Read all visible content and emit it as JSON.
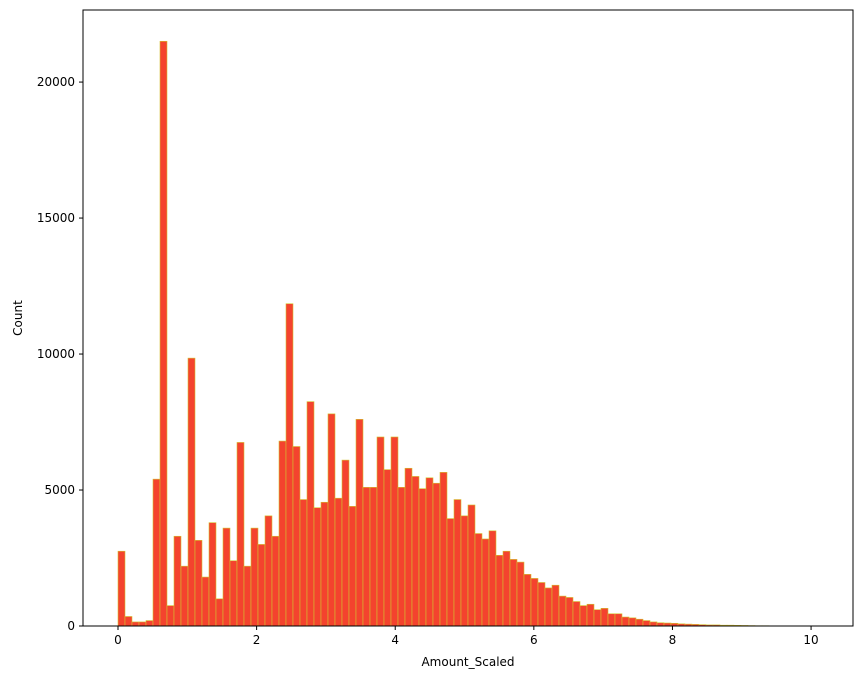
{
  "chart_data": {
    "type": "histogram",
    "xlabel": "Amount_Scaled",
    "ylabel": "Count",
    "color": "#f4432e",
    "edgecolor": "#d4c230",
    "bins": [
      0,
      0.101,
      0.202,
      0.303,
      0.404,
      0.505,
      0.606,
      0.707,
      0.808,
      0.909,
      1.01,
      1.111,
      1.212,
      1.313,
      1.414,
      1.515,
      1.616,
      1.717,
      1.818,
      1.919,
      2.02,
      2.121,
      2.222,
      2.323,
      2.424,
      2.525,
      2.626,
      2.727,
      2.828,
      2.929,
      3.03,
      3.131,
      3.232,
      3.333,
      3.434,
      3.535,
      3.636,
      3.737,
      3.838,
      3.939,
      4.04,
      4.141,
      4.242,
      4.343,
      4.444,
      4.545,
      4.646,
      4.747,
      4.848,
      4.949,
      5.05,
      5.151,
      5.252,
      5.353,
      5.454,
      5.555,
      5.656,
      5.757,
      5.858,
      5.959,
      6.06,
      6.161,
      6.262,
      6.363,
      6.464,
      6.565,
      6.666,
      6.767,
      6.868,
      6.969,
      7.07,
      7.171,
      7.272,
      7.373,
      7.474,
      7.575,
      7.676,
      7.777,
      7.878,
      7.979,
      8.08,
      8.181,
      8.282,
      8.383,
      8.484,
      8.585,
      8.686,
      8.787,
      8.888,
      8.989,
      9.09,
      9.191,
      9.292,
      9.393,
      9.494,
      9.595,
      9.696,
      9.797,
      9.898,
      9.999,
      10.1
    ],
    "values": [
      2750,
      350,
      150,
      150,
      200,
      5400,
      21500,
      750,
      3300,
      2200,
      9850,
      3150,
      1800,
      3800,
      1000,
      3600,
      2400,
      6750,
      2200,
      3600,
      3000,
      4050,
      3300,
      6800,
      11850,
      6600,
      4650,
      8250,
      4350,
      4550,
      7800,
      4700,
      6100,
      4400,
      7600,
      5100,
      5100,
      6950,
      5750,
      6950,
      5100,
      5800,
      5500,
      5050,
      5450,
      5250,
      5650,
      3950,
      4650,
      4050,
      4450,
      3400,
      3200,
      3500,
      2600,
      2750,
      2450,
      2350,
      1900,
      1750,
      1600,
      1400,
      1500,
      1100,
      1050,
      900,
      750,
      800,
      600,
      650,
      450,
      450,
      330,
      300,
      250,
      200,
      150,
      120,
      110,
      100,
      80,
      70,
      60,
      50,
      40,
      40,
      30,
      30,
      25,
      20,
      15,
      10,
      10,
      5,
      5,
      5,
      3,
      3,
      2,
      2
    ],
    "xlim": [
      -0.505,
      10.605
    ],
    "ylim": [
      0,
      22650
    ],
    "xticks": [
      0,
      2,
      4,
      6,
      8,
      10
    ],
    "yticks": [
      0,
      5000,
      10000,
      15000,
      20000
    ]
  }
}
